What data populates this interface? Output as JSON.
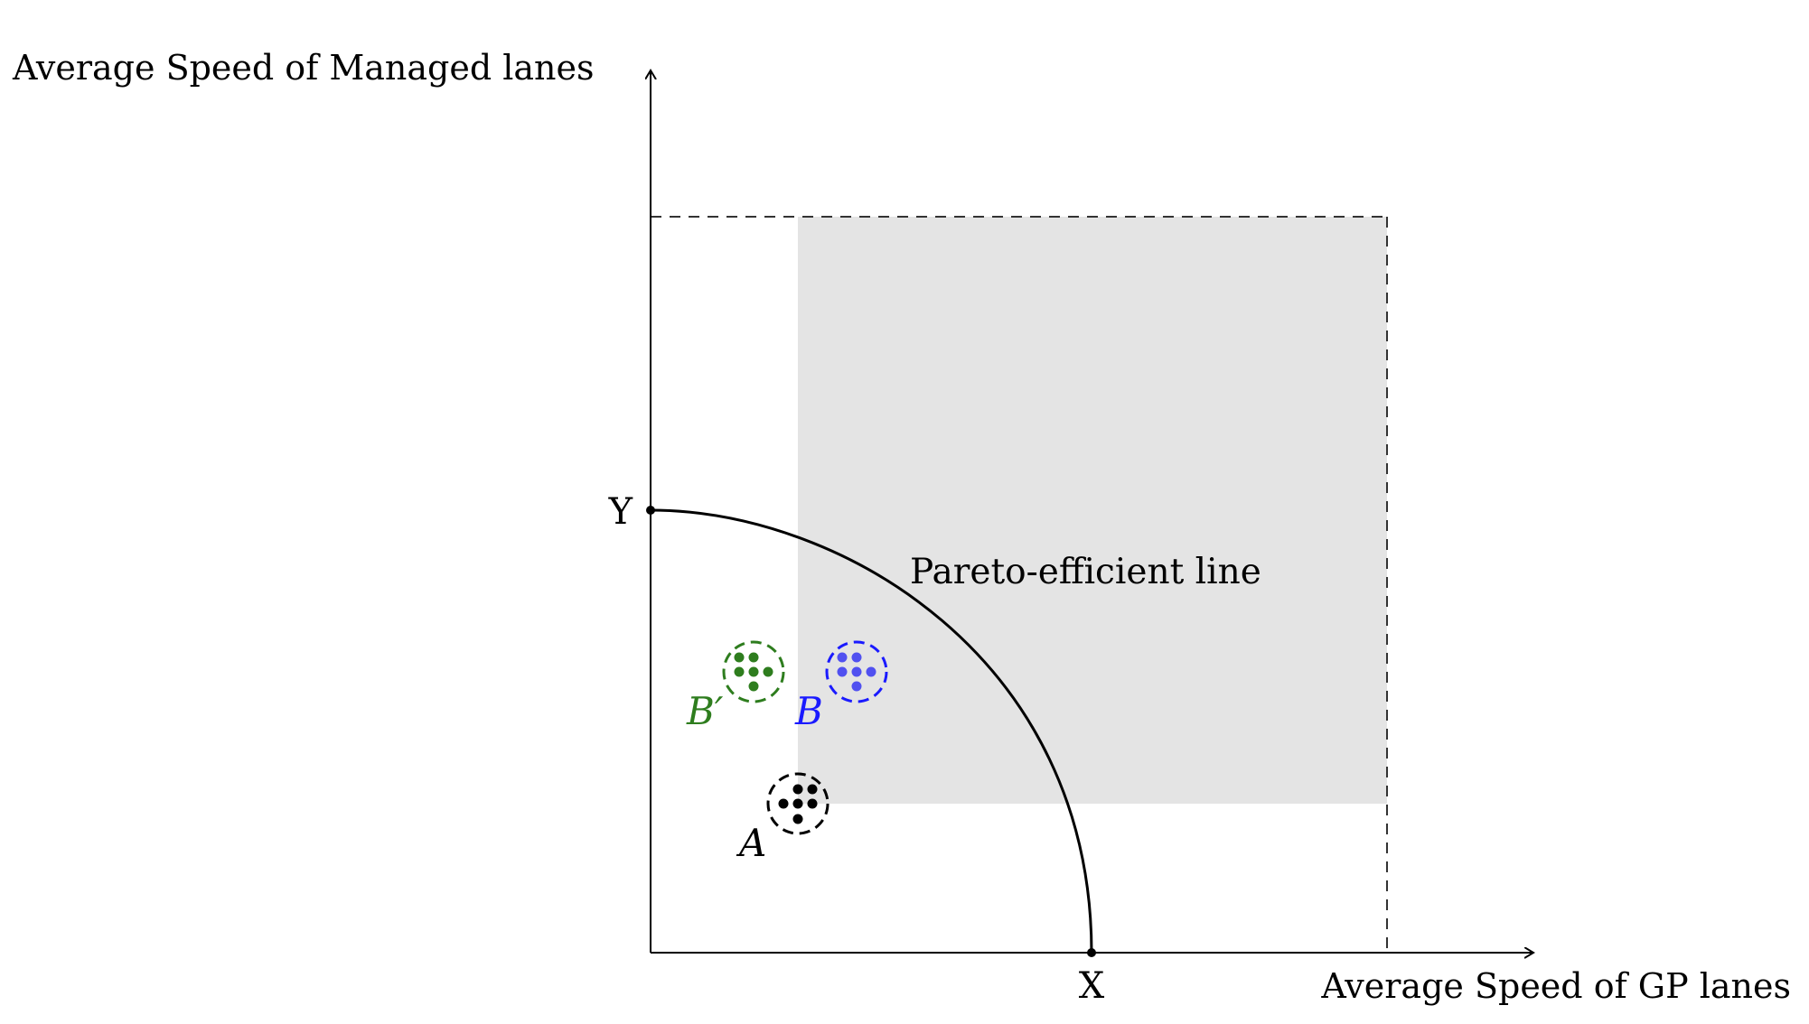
{
  "diagram": {
    "y_axis_label": "Average Speed of Managed lanes",
    "x_axis_label": "Average Speed of GP lanes",
    "y_intercept_label": "Y",
    "x_intercept_label": "X",
    "curve_label": "Pareto-efficient line",
    "clusters": [
      {
        "id": "A",
        "label": "A",
        "color": "#000000"
      },
      {
        "id": "B-prime",
        "label": "B′",
        "color": "#2e7d1e"
      },
      {
        "id": "B",
        "label": "B",
        "color": "#1a1aff"
      }
    ],
    "colors": {
      "shaded_region": "#e4e4e4",
      "axis": "#000000",
      "dashed_bounds": "#000000"
    }
  }
}
